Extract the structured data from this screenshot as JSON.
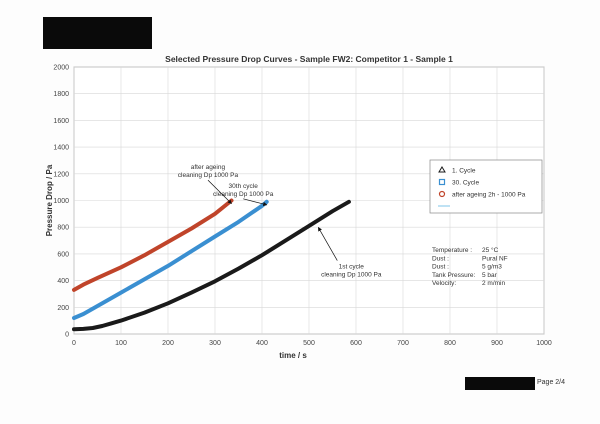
{
  "page": {
    "footer_text": "Page 2/4"
  },
  "chart_data": {
    "type": "line",
    "title": "Selected Pressure Drop Curves - Sample FW2: Competitor 1 - Sample 1",
    "xlabel": "time / s",
    "ylabel": "Pressure Drop / Pa",
    "xlim": [
      0,
      1000
    ],
    "ylim": [
      0,
      2000
    ],
    "xticks": [
      0,
      100,
      200,
      300,
      400,
      500,
      600,
      700,
      800,
      900,
      1000
    ],
    "yticks": [
      0,
      200,
      400,
      600,
      800,
      1000,
      1200,
      1400,
      1600,
      1800,
      2000
    ],
    "grid": true,
    "series": [
      {
        "name": "1. Cycle",
        "color": "#1a1a1a",
        "marker": "triangle",
        "points": [
          [
            0,
            35
          ],
          [
            20,
            38
          ],
          [
            40,
            45
          ],
          [
            60,
            60
          ],
          [
            80,
            80
          ],
          [
            100,
            100
          ],
          [
            150,
            160
          ],
          [
            200,
            230
          ],
          [
            250,
            310
          ],
          [
            300,
            395
          ],
          [
            350,
            490
          ],
          [
            400,
            590
          ],
          [
            450,
            700
          ],
          [
            500,
            810
          ],
          [
            550,
            920
          ],
          [
            585,
            990
          ]
        ]
      },
      {
        "name": "30. Cycle",
        "color": "#3a8fd1",
        "marker": "square",
        "points": [
          [
            0,
            120
          ],
          [
            20,
            150
          ],
          [
            50,
            210
          ],
          [
            100,
            310
          ],
          [
            150,
            410
          ],
          [
            200,
            510
          ],
          [
            250,
            620
          ],
          [
            300,
            730
          ],
          [
            350,
            840
          ],
          [
            400,
            960
          ],
          [
            410,
            990
          ]
        ]
      },
      {
        "name": "after ageing 2h - 1000 Pa",
        "color": "#c0442a",
        "marker": "circle",
        "points": [
          [
            0,
            330
          ],
          [
            20,
            370
          ],
          [
            50,
            420
          ],
          [
            100,
            500
          ],
          [
            150,
            590
          ],
          [
            200,
            690
          ],
          [
            250,
            790
          ],
          [
            300,
            900
          ],
          [
            335,
            1000
          ]
        ]
      },
      {
        "name": "",
        "color": "#7fc6ea",
        "marker": "none",
        "points": []
      }
    ],
    "annotations": [
      {
        "lines": [
          "after ageing",
          "cleaning Dp 1000 Pa"
        ],
        "x": 285,
        "y": 1235,
        "target": [
          335,
          1000
        ],
        "arrow": true
      },
      {
        "lines": [
          "30th cycle",
          "cleaning Dp 1000 Pa"
        ],
        "x": 360,
        "y": 1095,
        "target": [
          410,
          990
        ],
        "arrow": true
      },
      {
        "lines": [
          "1st cycle",
          "cleaning Dp 1000 Pa"
        ],
        "x": 590,
        "y": 490,
        "target": [
          520,
          820
        ],
        "arrow": true
      }
    ],
    "legend_position": "right",
    "test_conditions": [
      [
        "Temperature :",
        "25 °C"
      ],
      [
        "Dust :",
        "Pural NF"
      ],
      [
        "Dust :",
        "5 g/m3"
      ],
      [
        "Tank Pressure:",
        "5 bar"
      ],
      [
        "Velocity:",
        "2 m/min"
      ]
    ]
  }
}
